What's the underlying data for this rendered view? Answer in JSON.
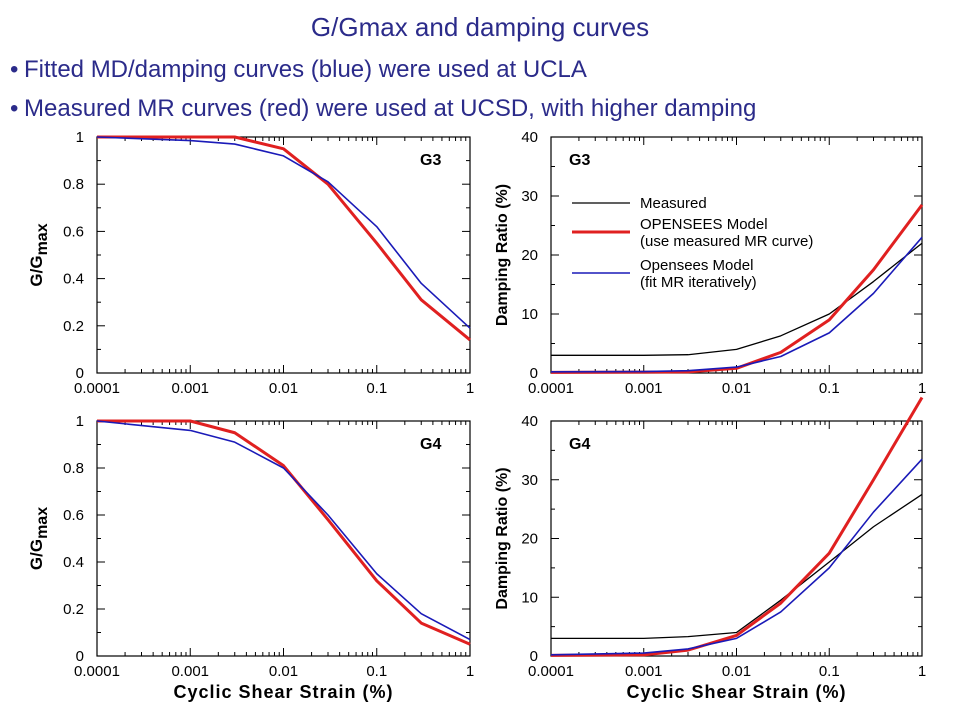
{
  "slide": {
    "title": "G/Gmax and damping curves",
    "bullets": [
      "Fitted MD/damping curves (blue) were used at UCLA",
      "Measured MR curves (red) were used at UCSD, with higher damping"
    ]
  },
  "colors": {
    "text": "#2b2b8a",
    "measured": "#000000",
    "ucsd": "#e02020",
    "ucla": "#1a1ab8"
  },
  "chart_data": [
    {
      "type": "line",
      "panel": "G3 modulus",
      "label": "G3",
      "xscale": "log",
      "xlim": [
        0.0001,
        1
      ],
      "ylim": [
        0,
        1
      ],
      "xticks": [
        "0.0001",
        "0.001",
        "0.01",
        "0.1",
        "1"
      ],
      "yticks": [
        "0",
        "0.2",
        "0.4",
        "0.6",
        "0.8",
        "1"
      ],
      "ylabel": "G/Gmax",
      "xlabel": "",
      "series": [
        {
          "color": "red",
          "x": [
            0.0001,
            0.001,
            0.003,
            0.01,
            0.03,
            0.1,
            0.3,
            1
          ],
          "y": [
            1.0,
            1.0,
            1.0,
            0.95,
            0.8,
            0.55,
            0.31,
            0.14
          ]
        },
        {
          "color": "blue",
          "x": [
            0.0001,
            0.001,
            0.003,
            0.01,
            0.03,
            0.1,
            0.3,
            1
          ],
          "y": [
            1.0,
            0.985,
            0.97,
            0.92,
            0.81,
            0.62,
            0.38,
            0.19
          ]
        }
      ]
    },
    {
      "type": "line",
      "panel": "G3 damping",
      "label": "G3",
      "xscale": "log",
      "xlim": [
        0.0001,
        1
      ],
      "ylim": [
        0,
        40
      ],
      "xticks": [
        "0.0001",
        "0.001",
        "0.01",
        "0.1",
        "1"
      ],
      "yticks": [
        "0",
        "10",
        "20",
        "30",
        "40"
      ],
      "ylabel": "Damping Ratio (%)",
      "xlabel": "",
      "legend": [
        "Measured",
        "OPENSEES Model",
        "(use measured MR curve)",
        "Opensees Model",
        "(fit MR iteratively)"
      ],
      "series": [
        {
          "color": "black",
          "x": [
            0.0001,
            0.001,
            0.003,
            0.01,
            0.03,
            0.1,
            0.3,
            1
          ],
          "y": [
            3.0,
            3.0,
            3.1,
            4.0,
            6.3,
            10.0,
            15.5,
            22.0
          ]
        },
        {
          "color": "red",
          "x": [
            0.0001,
            0.001,
            0.003,
            0.01,
            0.03,
            0.1,
            0.3,
            1
          ],
          "y": [
            0.1,
            0.15,
            0.2,
            0.8,
            3.5,
            9.0,
            17.5,
            28.5
          ]
        },
        {
          "color": "blue",
          "x": [
            0.0001,
            0.001,
            0.003,
            0.01,
            0.03,
            0.1,
            0.3,
            1
          ],
          "y": [
            0.2,
            0.25,
            0.4,
            1.0,
            2.8,
            6.8,
            13.5,
            23.0
          ]
        }
      ]
    },
    {
      "type": "line",
      "panel": "G4 modulus",
      "label": "G4",
      "xscale": "log",
      "xlim": [
        0.0001,
        1
      ],
      "ylim": [
        0,
        1
      ],
      "xticks": [
        "0.0001",
        "0.001",
        "0.01",
        "0.1",
        "1"
      ],
      "yticks": [
        "0",
        "0.2",
        "0.4",
        "0.6",
        "0.8",
        "1"
      ],
      "ylabel": "G/Gmax",
      "xlabel": "Cyclic Shear Strain (%)",
      "series": [
        {
          "color": "red",
          "x": [
            0.0001,
            0.001,
            0.003,
            0.01,
            0.03,
            0.1,
            0.3,
            1
          ],
          "y": [
            1.0,
            1.0,
            0.95,
            0.81,
            0.58,
            0.32,
            0.14,
            0.05
          ]
        },
        {
          "color": "blue",
          "x": [
            0.0001,
            0.001,
            0.003,
            0.01,
            0.03,
            0.1,
            0.3,
            1
          ],
          "y": [
            1.0,
            0.96,
            0.91,
            0.8,
            0.6,
            0.35,
            0.18,
            0.07
          ]
        }
      ]
    },
    {
      "type": "line",
      "panel": "G4 damping",
      "label": "G4",
      "xscale": "log",
      "xlim": [
        0.0001,
        1
      ],
      "ylim": [
        0,
        40
      ],
      "xticks": [
        "0.0001",
        "0.001",
        "0.01",
        "0.1",
        "1"
      ],
      "yticks": [
        "0",
        "10",
        "20",
        "30",
        "40"
      ],
      "ylabel": "Damping Ratio (%)",
      "xlabel": "Cyclic Shear Strain (%)",
      "series": [
        {
          "color": "black",
          "x": [
            0.0001,
            0.001,
            0.003,
            0.01,
            0.03,
            0.1,
            0.3,
            1
          ],
          "y": [
            3.0,
            3.0,
            3.3,
            4.0,
            9.5,
            16.0,
            22.0,
            27.5
          ]
        },
        {
          "color": "red",
          "x": [
            0.0001,
            0.001,
            0.003,
            0.01,
            0.03,
            0.1,
            0.3,
            1
          ],
          "y": [
            0.1,
            0.2,
            1.0,
            3.5,
            9.0,
            17.5,
            30.0,
            44.0
          ]
        },
        {
          "color": "blue",
          "x": [
            0.0001,
            0.001,
            0.003,
            0.01,
            0.03,
            0.1,
            0.3,
            1
          ],
          "y": [
            0.2,
            0.5,
            1.2,
            3.0,
            7.5,
            15.0,
            24.5,
            33.5
          ]
        }
      ]
    }
  ]
}
